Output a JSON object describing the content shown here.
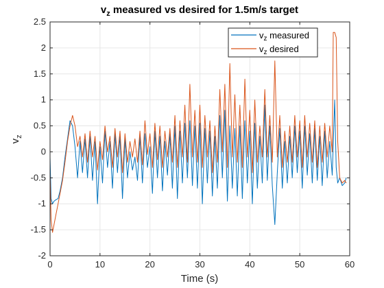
{
  "chart_data": {
    "type": "line",
    "title": {
      "main": "v",
      "sub": "z",
      "rest": " measured vs desired for 1.5m/s target"
    },
    "xlabel": "Time (s)",
    "ylabel": {
      "main": "v",
      "sub": "z"
    },
    "xlim": [
      0,
      60
    ],
    "ylim": [
      -2,
      2.5
    ],
    "xticks": [
      0,
      10,
      20,
      30,
      40,
      50,
      60
    ],
    "xtick_labels": [
      "0",
      "10",
      "20",
      "30",
      "40",
      "50",
      "60"
    ],
    "yticks": [
      -2,
      -1.5,
      -1,
      -0.5,
      0,
      0.5,
      1,
      1.5,
      2,
      2.5
    ],
    "ytick_labels": [
      "-2",
      "-1.5",
      "-1",
      "-0.5",
      "0",
      "0.5",
      "1",
      "1.5",
      "2",
      "2.5"
    ],
    "grid": true,
    "legend_position": "top-right",
    "series": [
      {
        "name": {
          "main": "v",
          "sub": "z",
          "rest": " measured"
        },
        "color": "#0072BD",
        "x": [
          0,
          0.2,
          0.5,
          0.8,
          1.2,
          1.6,
          2.0,
          2.5,
          3.0,
          3.5,
          4.0,
          4.5,
          5.0,
          5.5,
          6.0,
          6.5,
          7.0,
          7.5,
          8.0,
          8.5,
          9.0,
          9.5,
          10.0,
          10.5,
          11.0,
          11.5,
          12.0,
          12.5,
          13.0,
          13.5,
          14.0,
          14.5,
          15.0,
          15.5,
          16.0,
          16.5,
          17.0,
          17.5,
          18.0,
          18.5,
          19.0,
          19.5,
          20.0,
          20.5,
          21.0,
          21.5,
          22.0,
          22.5,
          23.0,
          23.5,
          24.0,
          24.5,
          25.0,
          25.5,
          26.0,
          26.5,
          27.0,
          27.5,
          28.0,
          28.5,
          29.0,
          29.5,
          30.0,
          30.5,
          31.0,
          31.5,
          32.0,
          32.5,
          33.0,
          33.5,
          34.0,
          34.5,
          35.0,
          35.5,
          36.0,
          36.5,
          37.0,
          37.5,
          38.0,
          38.5,
          39.0,
          39.5,
          40.0,
          40.5,
          41.0,
          41.5,
          42.0,
          42.5,
          43.0,
          43.5,
          44.0,
          44.5,
          45.0,
          45.5,
          46.0,
          46.5,
          47.0,
          47.5,
          48.0,
          48.5,
          49.0,
          49.5,
          50.0,
          50.5,
          51.0,
          51.5,
          52.0,
          52.5,
          53.0,
          53.5,
          54.0,
          54.5,
          55.0,
          55.5,
          56.0,
          56.5,
          57.0,
          57.3,
          57.6,
          58.0,
          58.5,
          59.0,
          59.3
        ],
        "y": [
          -0.1,
          -0.9,
          -1.0,
          -0.95,
          -0.92,
          -0.9,
          -0.75,
          -0.5,
          -0.1,
          0.25,
          0.6,
          0.5,
          0.1,
          -0.5,
          0.2,
          -0.4,
          0.25,
          -0.5,
          0.3,
          -0.55,
          0.2,
          -1.0,
          0.1,
          -0.6,
          0.4,
          -0.3,
          0.2,
          -0.7,
          0.35,
          -0.4,
          0.3,
          -0.9,
          0.25,
          -0.5,
          0.0,
          -0.35,
          -0.1,
          -0.55,
          0.3,
          -0.6,
          0.35,
          -0.3,
          0.1,
          -0.8,
          0.4,
          -0.5,
          0.3,
          -0.75,
          0.2,
          -0.45,
          0.35,
          -0.7,
          0.5,
          -0.9,
          0.4,
          -0.6,
          0.55,
          -0.5,
          0.6,
          -0.65,
          0.5,
          -0.7,
          0.55,
          -1.0,
          0.45,
          -0.6,
          0.4,
          -0.85,
          0.3,
          -0.7,
          0.7,
          -0.5,
          0.8,
          -0.95,
          0.5,
          -0.7,
          0.45,
          -0.85,
          0.5,
          -0.9,
          0.6,
          -0.6,
          0.4,
          -1.0,
          0.55,
          -0.7,
          0.3,
          -0.6,
          0.9,
          -0.55,
          0.5,
          -0.65,
          -1.4,
          -0.4,
          0.45,
          -0.7,
          0.2,
          -0.6,
          0.3,
          -0.5,
          0.5,
          -0.4,
          0.4,
          -0.7,
          0.5,
          -0.45,
          0.35,
          -0.6,
          0.45,
          -0.55,
          0.3,
          -0.65,
          0.4,
          -0.5,
          0.2,
          -0.45,
          1.0,
          -0.3,
          -0.6,
          -0.5,
          -0.65,
          -0.6,
          -0.5
        ]
      },
      {
        "name": {
          "main": "v",
          "sub": "z",
          "rest": " desired"
        },
        "color": "#D95319",
        "x": [
          0,
          0.2,
          0.5,
          0.8,
          1.2,
          1.6,
          2.0,
          2.5,
          3.0,
          3.5,
          4.0,
          4.5,
          5.0,
          5.5,
          6.0,
          6.5,
          7.0,
          7.5,
          8.0,
          8.5,
          9.0,
          9.5,
          10.0,
          10.5,
          11.0,
          11.5,
          12.0,
          12.5,
          13.0,
          13.5,
          14.0,
          14.5,
          15.0,
          15.5,
          16.0,
          16.5,
          17.0,
          17.5,
          18.0,
          18.5,
          19.0,
          19.5,
          20.0,
          20.5,
          21.0,
          21.5,
          22.0,
          22.5,
          23.0,
          23.5,
          24.0,
          24.5,
          25.0,
          25.5,
          26.0,
          26.5,
          27.0,
          27.5,
          28.0,
          28.5,
          29.0,
          29.5,
          30.0,
          30.5,
          31.0,
          31.5,
          32.0,
          32.5,
          33.0,
          33.5,
          34.0,
          34.5,
          35.0,
          35.5,
          36.0,
          36.5,
          37.0,
          37.5,
          38.0,
          38.5,
          39.0,
          39.5,
          40.0,
          40.5,
          41.0,
          41.5,
          42.0,
          42.5,
          43.0,
          43.5,
          44.0,
          44.5,
          45.0,
          45.5,
          46.0,
          46.5,
          47.0,
          47.5,
          48.0,
          48.5,
          49.0,
          49.5,
          50.0,
          50.5,
          51.0,
          51.5,
          52.0,
          52.5,
          53.0,
          53.5,
          54.0,
          54.5,
          55.0,
          55.5,
          56.0,
          56.5,
          56.7,
          57.0,
          57.3,
          57.6,
          58.0,
          58.5,
          59.0,
          59.3
        ],
        "y": [
          -0.4,
          -1.3,
          -1.55,
          -1.4,
          -1.2,
          -1.0,
          -0.8,
          -0.55,
          -0.2,
          0.2,
          0.5,
          0.7,
          0.5,
          0.1,
          0.3,
          -0.1,
          0.35,
          -0.2,
          0.4,
          -0.1,
          0.3,
          -0.35,
          0.2,
          -0.15,
          0.5,
          0.0,
          0.3,
          -0.3,
          0.45,
          -0.1,
          0.4,
          -0.4,
          0.35,
          -0.2,
          0.2,
          -0.1,
          0.25,
          -0.2,
          0.4,
          -0.25,
          0.6,
          -0.05,
          0.35,
          -0.3,
          0.55,
          -0.15,
          0.5,
          -0.3,
          0.4,
          -0.1,
          0.45,
          -0.2,
          0.7,
          -0.3,
          0.6,
          -0.1,
          0.9,
          -0.2,
          1.3,
          -0.1,
          0.8,
          -0.2,
          0.9,
          -0.3,
          0.7,
          -0.1,
          0.6,
          -0.4,
          0.5,
          -0.2,
          1.2,
          0.0,
          1.3,
          -0.3,
          1.7,
          -0.1,
          1.1,
          -0.2,
          0.9,
          -0.3,
          1.4,
          -0.1,
          0.8,
          -0.4,
          1.0,
          -0.2,
          0.5,
          -0.1,
          1.2,
          -0.1,
          0.7,
          -0.2,
          1.75,
          -0.1,
          0.7,
          -0.3,
          0.4,
          -0.2,
          0.5,
          -0.2,
          0.7,
          -0.1,
          0.6,
          -0.3,
          0.7,
          -0.1,
          0.55,
          -0.2,
          0.6,
          -0.3,
          0.5,
          -0.2,
          0.55,
          -0.1,
          0.5,
          0.0,
          2.3,
          2.3,
          2.2,
          0.2,
          -0.5,
          -0.6,
          -0.55,
          -0.6
        ]
      }
    ]
  }
}
